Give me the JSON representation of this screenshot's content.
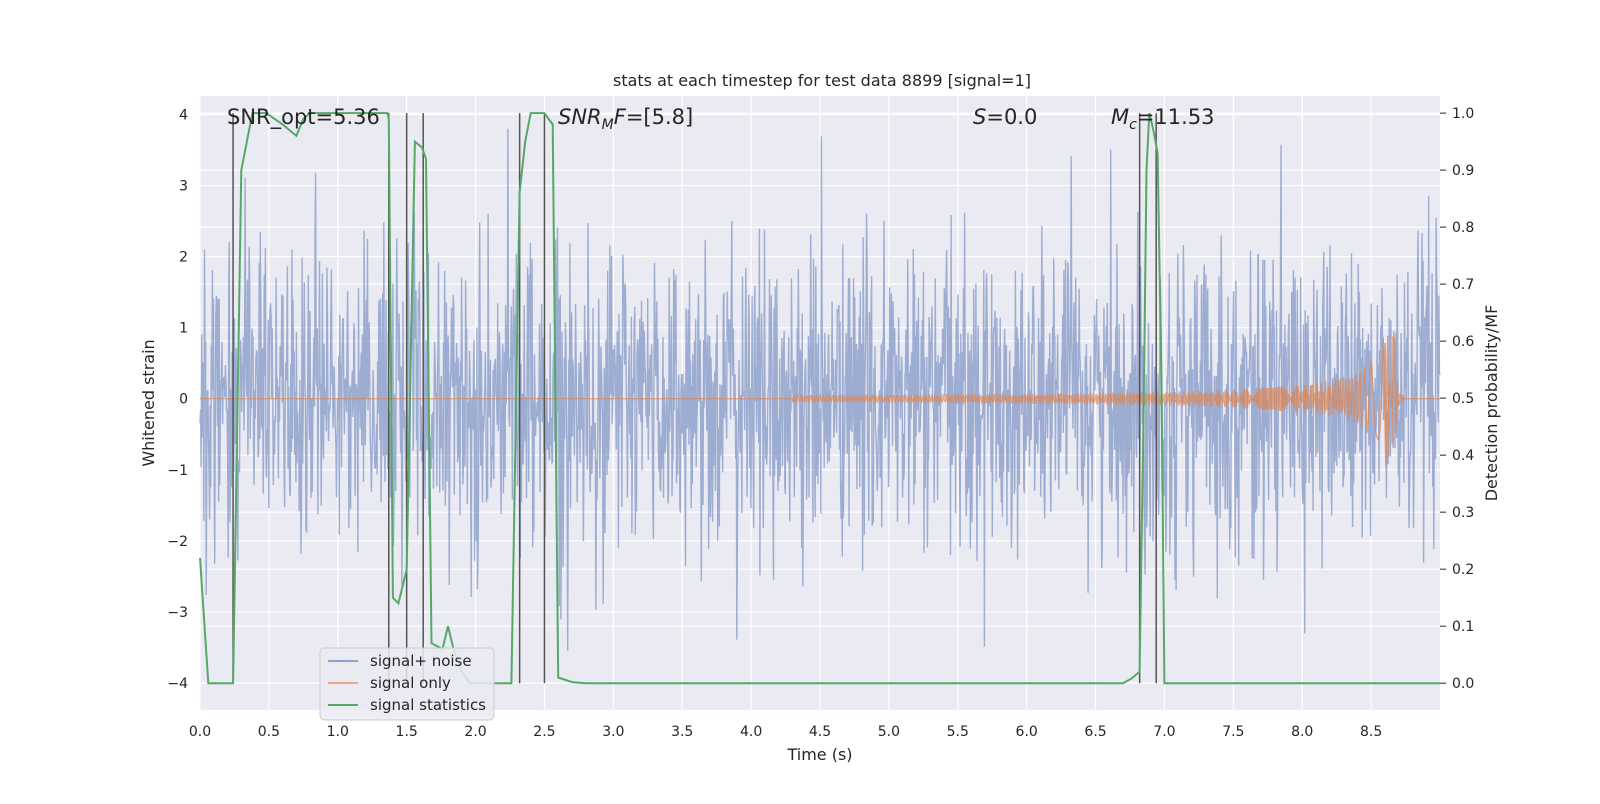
{
  "chart_data": {
    "type": "line",
    "title": "stats at each timestep for test data 8899 [signal=1]",
    "xlabel": "Time (s)",
    "ylabel_left": "Whitened strain",
    "ylabel_right": "Detection probability/MF",
    "xlim": [
      0.0,
      9.0
    ],
    "ylim_left": [
      -4.38,
      4.26
    ],
    "ylim_right": [
      -0.047,
      1.03
    ],
    "x_ticks": [
      0.0,
      0.5,
      1.0,
      1.5,
      2.0,
      2.5,
      3.0,
      3.5,
      4.0,
      4.5,
      5.0,
      5.5,
      6.0,
      6.5,
      7.0,
      7.5,
      8.0,
      8.5
    ],
    "x_tick_labels": [
      "0.0",
      "0.5",
      "1.0",
      "1.5",
      "2.0",
      "2.5",
      "3.0",
      "3.5",
      "4.0",
      "4.5",
      "5.0",
      "5.5",
      "6.0",
      "6.5",
      "7.0",
      "7.5",
      "8.0",
      "8.5"
    ],
    "y_left_ticks": [
      -4,
      -3,
      -2,
      -1,
      0,
      1,
      2,
      3,
      4
    ],
    "y_left_tick_labels": [
      "−4",
      "−3",
      "−2",
      "−1",
      "0",
      "1",
      "2",
      "3",
      "4"
    ],
    "y_right_ticks": [
      0.0,
      0.1,
      0.2,
      0.3,
      0.4,
      0.5,
      0.6,
      0.7,
      0.8,
      0.9,
      1.0
    ],
    "y_right_tick_labels": [
      "0.0",
      "0.1",
      "0.2",
      "0.3",
      "0.4",
      "0.5",
      "0.6",
      "0.7",
      "0.8",
      "0.9",
      "1.0"
    ],
    "grid": true,
    "legend_position": "lower-left",
    "legend": [
      {
        "label": "signal+ noise",
        "color": "#8fa2cc"
      },
      {
        "label": "signal only",
        "color": "#dd8452"
      },
      {
        "label": "signal statistics",
        "color": "#55a868"
      }
    ],
    "annotations": [
      {
        "text": "SNR_opt=5.36",
        "x": 0.19
      },
      {
        "text": "SNRMF=[5.8]",
        "x": 2.59
      },
      {
        "text": "S=0.0",
        "x": 5.6
      },
      {
        "text": "Mc=11.53",
        "x": 6.6
      }
    ],
    "series": [
      {
        "name": "signal+ noise",
        "axis": "left",
        "style": "dense white-noise strain, approx. gaussian, sigma ~1.05, extremes about -4 to +3.8",
        "x_range": [
          0.0,
          9.0
        ],
        "sigma": 1.05
      },
      {
        "name": "signal only",
        "axis": "left",
        "style": "chirp waveform, amplitude growing until merger then ringdown",
        "chirp_start": 4.3,
        "merger_time": 8.67,
        "peak_amplitude": 0.98,
        "min_amplitude": -0.77
      },
      {
        "name": "signal statistics",
        "axis": "right",
        "x": [
          0.0,
          0.06,
          0.12,
          0.24,
          0.3,
          0.38,
          0.48,
          0.6,
          0.7,
          0.75,
          0.8,
          0.9,
          1.0,
          1.2,
          1.36,
          1.37,
          1.4,
          1.44,
          1.5,
          1.56,
          1.61,
          1.64,
          1.68,
          1.76,
          1.8,
          1.84,
          1.9,
          1.96,
          2.1,
          2.26,
          2.32,
          2.36,
          2.4,
          2.46,
          2.5,
          2.56,
          2.6,
          2.7,
          2.8,
          3.0,
          4.0,
          5.0,
          6.0,
          6.7,
          6.76,
          6.82,
          6.85,
          6.87,
          6.89,
          6.92,
          6.95,
          6.98,
          7.0,
          8.0,
          9.0
        ],
        "y": [
          0.22,
          0.0,
          0.0,
          0.0,
          0.9,
          1.0,
          1.0,
          0.98,
          0.96,
          0.99,
          1.0,
          1.0,
          1.0,
          1.0,
          1.0,
          0.99,
          0.15,
          0.14,
          0.2,
          0.95,
          0.94,
          0.92,
          0.07,
          0.06,
          0.1,
          0.06,
          0.02,
          0.0,
          0.0,
          0.0,
          0.86,
          0.95,
          1.0,
          1.0,
          1.0,
          0.98,
          0.01,
          0.002,
          0.0,
          0.0,
          0.0,
          0.0,
          0.0,
          0.0,
          0.008,
          0.02,
          0.5,
          0.9,
          1.0,
          0.97,
          0.93,
          0.5,
          0.0,
          0.0,
          0.0
        ]
      }
    ],
    "vertical_lines": [
      0.24,
      1.37,
      1.5,
      1.62,
      2.32,
      2.5,
      6.82,
      6.94
    ]
  }
}
